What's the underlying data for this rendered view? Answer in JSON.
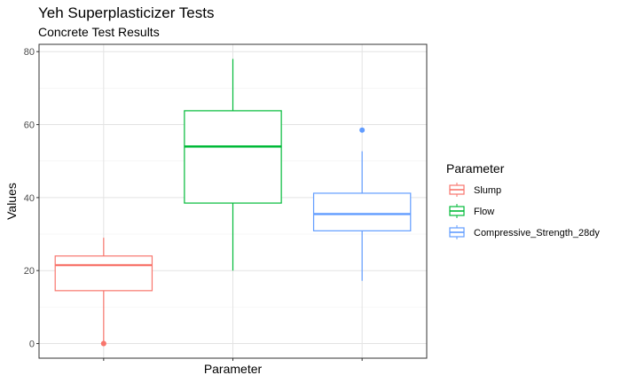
{
  "chart_data": {
    "type": "box",
    "title": "Yeh Superplasticizer Tests",
    "subtitle": "Concrete Test Results",
    "xlabel": "Parameter",
    "ylabel": "Values",
    "ylim": [
      -4,
      82
    ],
    "yticks": [
      0,
      20,
      40,
      60,
      80
    ],
    "grid": true,
    "legend": {
      "title": "Parameter",
      "placement": "right",
      "entries": [
        "Slump",
        "Flow",
        "Compressive_Strength_28dy"
      ]
    },
    "series": [
      {
        "name": "Slump",
        "color": "#F8766D",
        "whisker_low": 0,
        "q1": 14.5,
        "median": 21.5,
        "q3": 24,
        "whisker_high": 29,
        "outliers": [
          0,
          0
        ]
      },
      {
        "name": "Flow",
        "color": "#00BA38",
        "whisker_low": 20,
        "q1": 38.5,
        "median": 54,
        "q3": 63.8,
        "whisker_high": 78,
        "outliers": []
      },
      {
        "name": "Compressive_Strength_28dy",
        "color": "#619CFF",
        "whisker_low": 17.2,
        "q1": 30.9,
        "median": 35.5,
        "q3": 41.2,
        "whisker_high": 52.7,
        "outliers": [
          58.5
        ]
      }
    ]
  }
}
